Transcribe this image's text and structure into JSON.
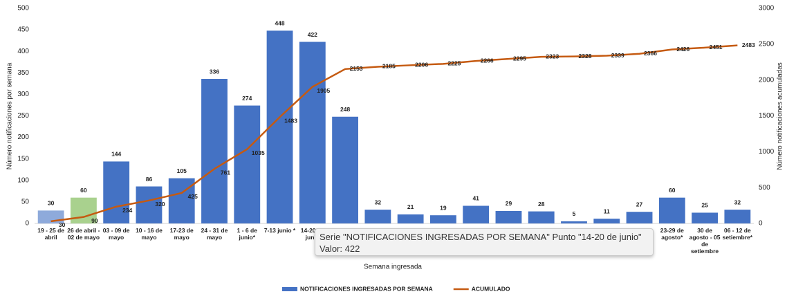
{
  "chart_data": {
    "type": "bar",
    "x_label": "Semana ingresada",
    "y_label": "Número notificaciones por semana",
    "y2_label": "Número notificaciones acumuladas",
    "categories": [
      "19 - 25 de abril",
      "26 de abril - 02 de mayo",
      "03 - 09 de mayo",
      "10 - 16 de mayo",
      "17-23 de mayo",
      "24 - 31 de mayo",
      "1 - 6 de junio*",
      "7-13 junio *",
      "14-20 de junio",
      null,
      null,
      null,
      null,
      null,
      null,
      null,
      null,
      null,
      null,
      "23-29 de agosto*",
      "30 de agosto - 05 de setiembre",
      "06 - 12 de setiembre*"
    ],
    "series": [
      {
        "name": "NOTIFICACIONES INGRESADAS POR SEMANA",
        "type": "bar",
        "color": "#4472c4",
        "colors": [
          "#8eaadb",
          "#a9d18e",
          "#4472c4",
          "#4472c4",
          "#4472c4",
          "#4472c4",
          "#4472c4",
          "#4472c4",
          "#4472c4",
          "#4472c4",
          "#4472c4",
          "#4472c4",
          "#4472c4",
          "#4472c4",
          "#4472c4",
          "#4472c4",
          "#4472c4",
          "#4472c4",
          "#4472c4",
          "#4472c4",
          "#4472c4",
          "#4472c4"
        ],
        "values": [
          30,
          60,
          144,
          86,
          105,
          336,
          274,
          448,
          422,
          248,
          32,
          21,
          19,
          41,
          29,
          28,
          5,
          11,
          27,
          60,
          25,
          32
        ]
      },
      {
        "name": "ACUMULADO",
        "type": "line",
        "color": "#c55a11",
        "axis": "y2",
        "values": [
          30,
          90,
          234,
          320,
          425,
          761,
          1035,
          1483,
          1905,
          2153,
          2185,
          2206,
          2225,
          2266,
          2295,
          2323,
          2328,
          2339,
          2366,
          2426,
          2451,
          2483
        ]
      }
    ],
    "ylim": [
      0,
      500
    ],
    "yticks": [
      0,
      50,
      100,
      150,
      200,
      250,
      300,
      350,
      400,
      450,
      500
    ],
    "y2lim": [
      0,
      3000
    ],
    "y2ticks": [
      0,
      500,
      1000,
      1500,
      2000,
      2500,
      3000
    ],
    "legend": "bottom",
    "tooltip": [
      "Serie \"NOTIFICACIONES INGRESADAS POR SEMANA\" Punto \"14-20 de junio\"",
      "Valor: 422"
    ]
  }
}
